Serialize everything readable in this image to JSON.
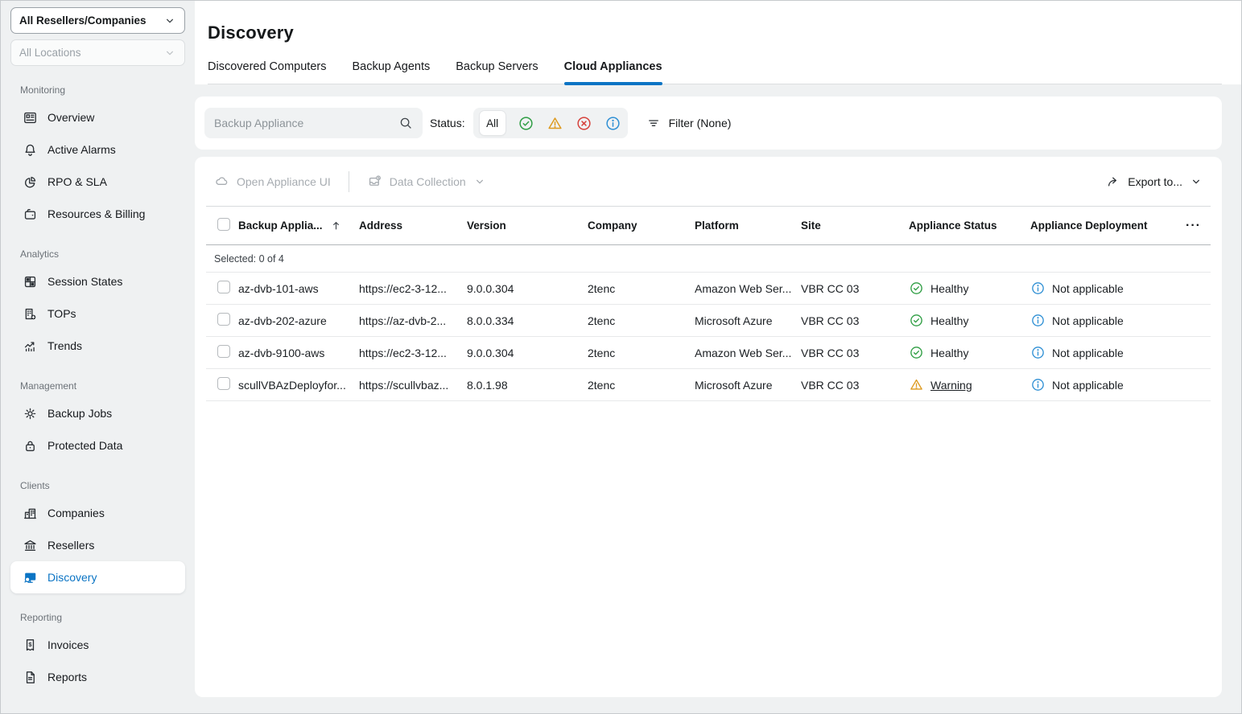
{
  "colors": {
    "accent": "#0b74c4",
    "healthy_green": "#2f9e44",
    "warning_orange": "#dd9a1f",
    "error_red": "#d6423c",
    "info_blue": "#2e8fd4"
  },
  "sidebar": {
    "reseller_select": {
      "value": "All Resellers/Companies"
    },
    "location_select": {
      "value": "All Locations"
    },
    "sections": [
      {
        "label": "Monitoring",
        "items": [
          {
            "label": "Overview",
            "icon": "dashboard"
          },
          {
            "label": "Active Alarms",
            "icon": "bell"
          },
          {
            "label": "RPO & SLA",
            "icon": "pie-chart"
          },
          {
            "label": "Resources & Billing",
            "icon": "wallet"
          }
        ]
      },
      {
        "label": "Analytics",
        "items": [
          {
            "label": "Session States",
            "icon": "session-grid"
          },
          {
            "label": "TOPs",
            "icon": "building-plus"
          },
          {
            "label": "Trends",
            "icon": "trend-chart"
          }
        ]
      },
      {
        "label": "Management",
        "items": [
          {
            "label": "Backup Jobs",
            "icon": "gear"
          },
          {
            "label": "Protected Data",
            "icon": "lock"
          }
        ]
      },
      {
        "label": "Clients",
        "items": [
          {
            "label": "Companies",
            "icon": "buildings"
          },
          {
            "label": "Resellers",
            "icon": "bank"
          },
          {
            "label": "Discovery",
            "icon": "monitor-search",
            "active": true
          }
        ]
      },
      {
        "label": "Reporting",
        "items": [
          {
            "label": "Invoices",
            "icon": "invoice"
          },
          {
            "label": "Reports",
            "icon": "report-doc"
          }
        ]
      }
    ]
  },
  "header": {
    "title": "Discovery",
    "tabs": [
      {
        "label": "Discovered Computers"
      },
      {
        "label": "Backup Agents"
      },
      {
        "label": "Backup Servers"
      },
      {
        "label": "Cloud Appliances",
        "active": true
      }
    ]
  },
  "filter_bar": {
    "search_placeholder": "Backup Appliance",
    "status_label": "Status:",
    "status_all": "All",
    "filter_label": "Filter (None)"
  },
  "toolbar": {
    "open_appliance_label": "Open Appliance UI",
    "data_collection_label": "Data Collection",
    "export_label": "Export to..."
  },
  "table": {
    "selected_text": "Selected: 0 of 4",
    "menu_label": "···",
    "columns": [
      {
        "label": "Backup Applia..."
      },
      {
        "label": "Address"
      },
      {
        "label": "Version"
      },
      {
        "label": "Company"
      },
      {
        "label": "Platform"
      },
      {
        "label": "Site"
      },
      {
        "label": "Appliance Status"
      },
      {
        "label": "Appliance Deployment"
      }
    ],
    "rows": [
      {
        "name": "az-dvb-101-aws",
        "address": "https://ec2-3-12...",
        "version": "9.0.0.304",
        "company": "2tenc",
        "platform": "Amazon Web Ser...",
        "site": "VBR CC 03",
        "status": {
          "label": "Healthy",
          "type": "healthy"
        },
        "deployment": "Not applicable"
      },
      {
        "name": "az-dvb-202-azure",
        "address": "https://az-dvb-2...",
        "version": "8.0.0.334",
        "company": "2tenc",
        "platform": "Microsoft Azure",
        "site": "VBR CC 03",
        "status": {
          "label": "Healthy",
          "type": "healthy"
        },
        "deployment": "Not applicable"
      },
      {
        "name": "az-dvb-9100-aws",
        "address": "https://ec2-3-12...",
        "version": "9.0.0.304",
        "company": "2tenc",
        "platform": "Amazon Web Ser...",
        "site": "VBR CC 03",
        "status": {
          "label": "Healthy",
          "type": "healthy"
        },
        "deployment": "Not applicable"
      },
      {
        "name": "scullVBAzDeployfor...",
        "address": "https://scullvbaz...",
        "version": "8.0.1.98",
        "company": "2tenc",
        "platform": "Microsoft Azure",
        "site": "VBR CC 03",
        "status": {
          "label": "Warning",
          "type": "warning"
        },
        "deployment": "Not applicable"
      }
    ]
  }
}
